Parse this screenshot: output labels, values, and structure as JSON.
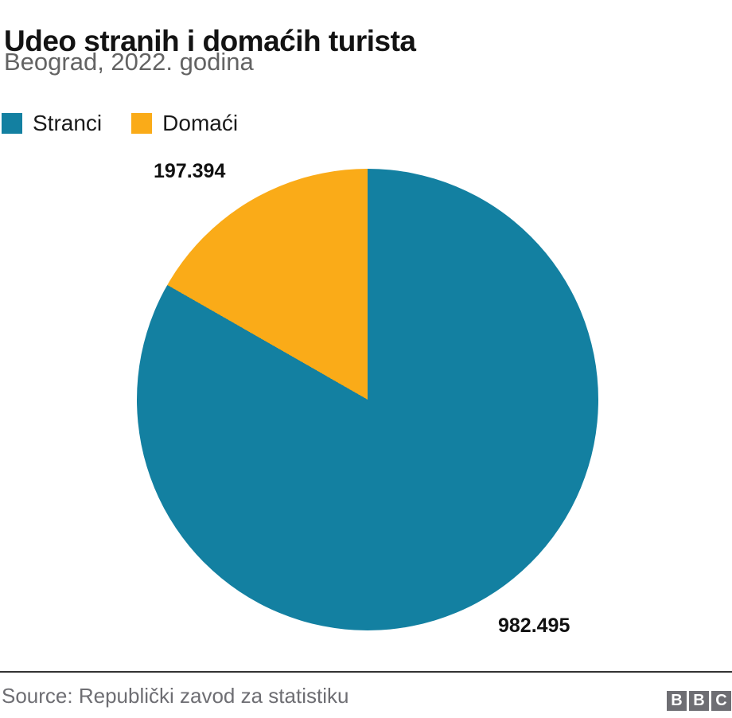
{
  "header": {
    "title": "Udeo stranih i domaćih turista",
    "subtitle": "Beograd, 2022. godina"
  },
  "chart_data": {
    "type": "pie",
    "title": "Udeo stranih i domaćih turista",
    "subtitle": "Beograd, 2022. godina",
    "series": [
      {
        "name": "Stranci",
        "value": 982495,
        "display_value": "982.495",
        "color": "#1380A1"
      },
      {
        "name": "Domaći",
        "value": 197394,
        "display_value": "197.394",
        "color": "#FAAB18"
      }
    ],
    "start_angle_deg": 0,
    "direction": "clockwise",
    "legend_position": "top-left",
    "data_labels": "absolute values outside slices"
  },
  "footer": {
    "source": "Source: Republički zavod za statistiku",
    "logo": {
      "letters": [
        "B",
        "B",
        "C"
      ],
      "block_color": "#6e6e73"
    }
  },
  "colors": {
    "background": "#ffffff",
    "title_text": "#131313",
    "subtitle_text": "#636363",
    "label_text": "#111111",
    "source_text": "#6e6e73",
    "divider": "#333333"
  }
}
